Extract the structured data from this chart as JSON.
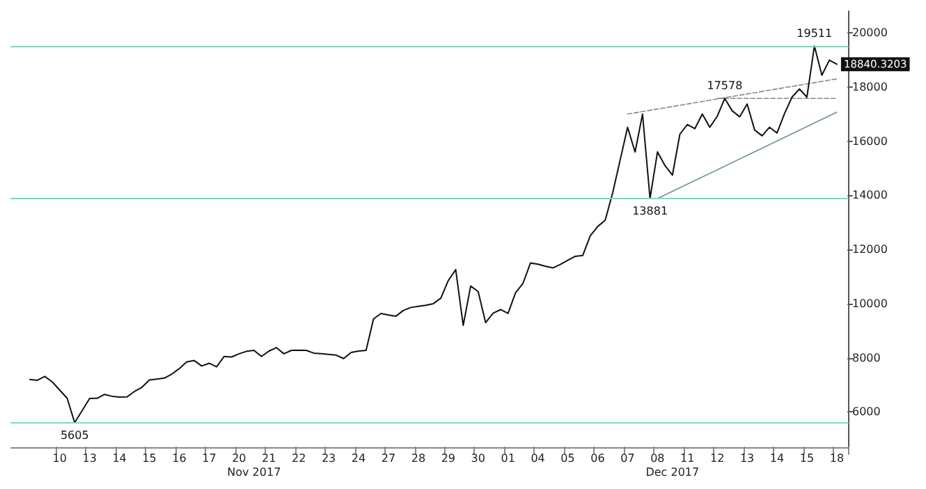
{
  "chart_data": {
    "type": "line",
    "categories": [
      null,
      null,
      null,
      null,
      null,
      null,
      "10",
      null,
      null,
      null,
      "13",
      null,
      null,
      null,
      "14",
      null,
      null,
      null,
      "15",
      null,
      null,
      null,
      "16",
      null,
      null,
      null,
      "17",
      null,
      null,
      null,
      "20",
      null,
      null,
      null,
      "21",
      null,
      null,
      null,
      "22",
      null,
      null,
      null,
      "23",
      null,
      null,
      null,
      "24",
      null,
      null,
      null,
      "27",
      null,
      null,
      null,
      "28",
      null,
      null,
      null,
      "29",
      null,
      null,
      null,
      "30",
      null,
      null,
      null,
      "01",
      null,
      null,
      null,
      "04",
      null,
      null,
      null,
      "05",
      null,
      null,
      null,
      "06",
      null,
      null,
      null,
      "07",
      null,
      null,
      null,
      "08",
      null,
      null,
      null,
      "11",
      null,
      null,
      null,
      "12",
      null,
      null,
      null,
      "13",
      null,
      null,
      null,
      "14",
      null,
      null,
      null,
      "15",
      null,
      null,
      null,
      "18",
      null
    ],
    "series": [
      {
        "color": "#111111",
        "values": [
          null,
          null,
          7200,
          7170,
          7315,
          7112,
          6810,
          6506,
          5605,
          6050,
          6500,
          6506,
          6650,
          6580,
          6550,
          6556,
          6759,
          6910,
          7180,
          7213,
          7250,
          7400,
          7600,
          7850,
          7900,
          7700,
          7800,
          7669,
          8050,
          8030,
          8150,
          8240,
          8275,
          8050,
          8250,
          8376,
          8150,
          8275,
          8280,
          8275,
          8174,
          8150,
          8130,
          8100,
          7972,
          8200,
          8250,
          8275,
          9437,
          9639,
          9580,
          9538,
          9750,
          9860,
          9900,
          9942,
          10000,
          10200,
          10852,
          11256,
          9200,
          10650,
          10448,
          9300,
          9650,
          9780,
          9639,
          10400,
          10750,
          11500,
          11458,
          11380,
          11320,
          11450,
          11600,
          11750,
          11780,
          12500,
          12850,
          13076,
          14087,
          15300,
          16513,
          15600,
          17000,
          13881,
          15603,
          15098,
          14744,
          16260,
          16614,
          16462,
          17000,
          16513,
          16917,
          17578,
          17119,
          16900,
          17371,
          16412,
          16200,
          16513,
          16300,
          17018,
          17624,
          17927,
          17624,
          19511,
          18433,
          18989,
          18840.3203,
          null
        ],
        "value_labels": [
          null,
          null,
          null,
          null,
          null,
          null,
          null,
          null,
          "5605",
          null,
          null,
          null,
          null,
          null,
          null,
          null,
          null,
          null,
          null,
          null,
          null,
          null,
          null,
          null,
          null,
          null,
          null,
          null,
          null,
          null,
          null,
          null,
          null,
          null,
          null,
          null,
          null,
          null,
          null,
          null,
          null,
          null,
          null,
          null,
          null,
          null,
          null,
          null,
          null,
          null,
          null,
          null,
          null,
          null,
          null,
          null,
          null,
          null,
          null,
          null,
          null,
          null,
          null,
          null,
          null,
          null,
          null,
          null,
          null,
          null,
          null,
          null,
          null,
          null,
          null,
          null,
          null,
          null,
          null,
          null,
          null,
          null,
          null,
          null,
          null,
          "13881",
          null,
          null,
          null,
          null,
          null,
          null,
          null,
          null,
          null,
          "17578",
          null,
          null,
          null,
          null,
          null,
          null,
          null,
          null,
          null,
          null,
          null,
          "19511",
          null,
          null,
          "18840.3203",
          null
        ]
      },
      {
        "color": "#888888",
        "line_style": "dashed",
        "x": [
          "07",
          "18"
        ],
        "values": [
          17000,
          18300
        ]
      },
      {
        "color": "#888888",
        "line_style": "dashed",
        "x": [
          "12",
          "18"
        ],
        "values": [
          17578,
          17578
        ]
      },
      {
        "color": "#6f8f99",
        "line_style": "solid",
        "x": [
          "08",
          "18"
        ],
        "values": [
          13881,
          17070
        ]
      }
    ],
    "ylim": [
      4700,
      20800
    ],
    "yticks": [
      6000,
      8000,
      10000,
      12000,
      14000,
      16000,
      18000,
      20000
    ],
    "ref_lines": [
      {
        "axis": "y",
        "value": 5605,
        "color": "#86d4c3"
      },
      {
        "axis": "y",
        "value": 13881,
        "color": "#86d4c3"
      },
      {
        "axis": "y",
        "value": 19511,
        "color": "#86d4c3"
      }
    ],
    "annotations": [
      "Nov 2017",
      "Dec 2017"
    ],
    "grid": false,
    "marker": "none"
  }
}
